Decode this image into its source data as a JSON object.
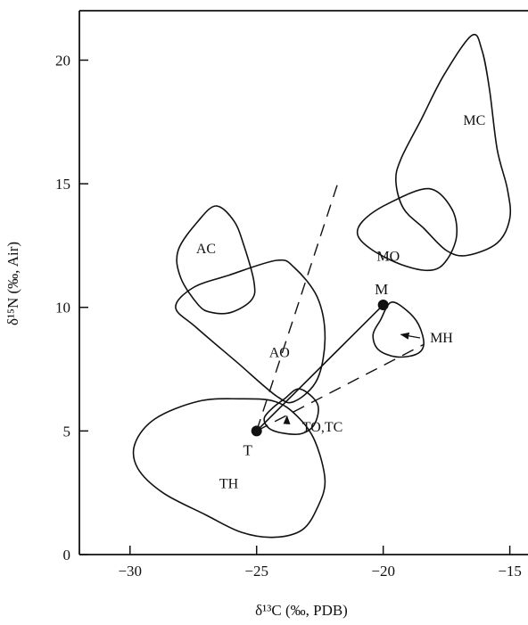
{
  "chart_data": {
    "type": "scatter",
    "title": "",
    "xlabel": "δ¹³C (‰, PDB)",
    "ylabel": "δ¹⁵N (‰, Air)",
    "xlim": [
      -32,
      -14
    ],
    "ylim": [
      0,
      22
    ],
    "xticks": [
      -30,
      -25,
      -20,
      -15
    ],
    "yticks": [
      0,
      5,
      10,
      15,
      20
    ],
    "xtick_labels": [
      "−30",
      "−25",
      "−20",
      "−15"
    ],
    "ytick_labels": [
      "0",
      "5",
      "10",
      "15",
      "20"
    ],
    "grid": false,
    "points": [
      {
        "name": "T",
        "x": -25.0,
        "y": 5.0
      },
      {
        "name": "M",
        "x": -20.0,
        "y": 10.1
      }
    ],
    "regions": [
      {
        "name": "MC",
        "label_at": [
          -16.4,
          17.6
        ],
        "outline": [
          [
            -16.5,
            21.0
          ],
          [
            -16.1,
            20.4
          ],
          [
            -15.8,
            18.8
          ],
          [
            -15.5,
            16.4
          ],
          [
            -15.1,
            14.8
          ],
          [
            -15.0,
            13.6
          ],
          [
            -15.5,
            12.6
          ],
          [
            -16.7,
            12.1
          ],
          [
            -17.5,
            12.3
          ],
          [
            -18.4,
            13.2
          ],
          [
            -19.2,
            14.0
          ],
          [
            -19.5,
            15.1
          ],
          [
            -19.3,
            16.0
          ],
          [
            -18.5,
            17.6
          ],
          [
            -17.6,
            19.4
          ]
        ]
      },
      {
        "name": "MO",
        "label_at": [
          -19.8,
          12.1
        ],
        "outline": [
          [
            -18.2,
            14.8
          ],
          [
            -17.3,
            14.0
          ],
          [
            -17.1,
            12.9
          ],
          [
            -17.5,
            11.9
          ],
          [
            -18.1,
            11.5
          ],
          [
            -19.2,
            11.7
          ],
          [
            -20.4,
            12.3
          ],
          [
            -21.0,
            12.9
          ],
          [
            -20.8,
            13.5
          ],
          [
            -19.8,
            14.2
          ]
        ]
      },
      {
        "name": "MH",
        "label_at": [
          -17.7,
          8.8
        ],
        "outline": [
          [
            -19.7,
            10.2
          ],
          [
            -19.1,
            9.9
          ],
          [
            -18.6,
            9.3
          ],
          [
            -18.4,
            8.5
          ],
          [
            -18.7,
            8.1
          ],
          [
            -19.5,
            8.0
          ],
          [
            -20.2,
            8.3
          ],
          [
            -20.4,
            8.9
          ],
          [
            -20.1,
            9.5
          ]
        ]
      },
      {
        "name": "AC",
        "label_at": [
          -27.0,
          12.4
        ],
        "outline": [
          [
            -26.6,
            14.1
          ],
          [
            -25.9,
            13.5
          ],
          [
            -25.5,
            12.5
          ],
          [
            -25.1,
            11.0
          ],
          [
            -25.2,
            10.3
          ],
          [
            -26.0,
            9.8
          ],
          [
            -26.8,
            9.8
          ],
          [
            -27.3,
            10.1
          ],
          [
            -28.0,
            11.2
          ],
          [
            -28.1,
            12.3
          ],
          [
            -27.3,
            13.5
          ]
        ]
      },
      {
        "name": "AO",
        "label_at": [
          -24.1,
          8.2
        ],
        "outline": [
          [
            -24.2,
            11.9
          ],
          [
            -23.5,
            11.6
          ],
          [
            -22.6,
            10.4
          ],
          [
            -22.3,
            8.8
          ],
          [
            -22.6,
            7.1
          ],
          [
            -23.5,
            6.2
          ],
          [
            -24.2,
            6.4
          ],
          [
            -25.8,
            7.8
          ],
          [
            -27.4,
            9.2
          ],
          [
            -28.2,
            10.0
          ],
          [
            -27.5,
            10.8
          ],
          [
            -26.1,
            11.3
          ]
        ]
      },
      {
        "name": "TO,TC",
        "label_at": [
          -22.4,
          5.2
        ],
        "outline": [
          [
            -23.3,
            6.7
          ],
          [
            -22.6,
            6.1
          ],
          [
            -22.7,
            5.3
          ],
          [
            -23.2,
            4.9
          ],
          [
            -23.9,
            4.9
          ],
          [
            -24.5,
            5.1
          ],
          [
            -24.7,
            5.5
          ],
          [
            -24.4,
            5.9
          ],
          [
            -23.9,
            6.3
          ]
        ]
      },
      {
        "name": "TH",
        "label_at": [
          -26.1,
          2.9
        ],
        "outline": [
          [
            -25.7,
            6.3
          ],
          [
            -24.3,
            6.2
          ],
          [
            -23.4,
            5.6
          ],
          [
            -22.7,
            4.6
          ],
          [
            -22.3,
            3.0
          ],
          [
            -22.6,
            1.9
          ],
          [
            -23.2,
            1.0
          ],
          [
            -24.3,
            0.7
          ],
          [
            -25.6,
            0.9
          ],
          [
            -27.0,
            1.6
          ],
          [
            -28.7,
            2.5
          ],
          [
            -29.7,
            3.5
          ],
          [
            -29.8,
            4.5
          ],
          [
            -29.0,
            5.5
          ],
          [
            -27.3,
            6.2
          ]
        ]
      }
    ],
    "connector": {
      "from": "T",
      "to": "M"
    },
    "dashed_lines": [
      {
        "from": [
          -25.0,
          5.0
        ],
        "to": [
          -21.8,
          15.0
        ]
      },
      {
        "from": [
          -25.0,
          5.0
        ],
        "to": [
          -18.4,
          8.5
        ]
      }
    ]
  }
}
